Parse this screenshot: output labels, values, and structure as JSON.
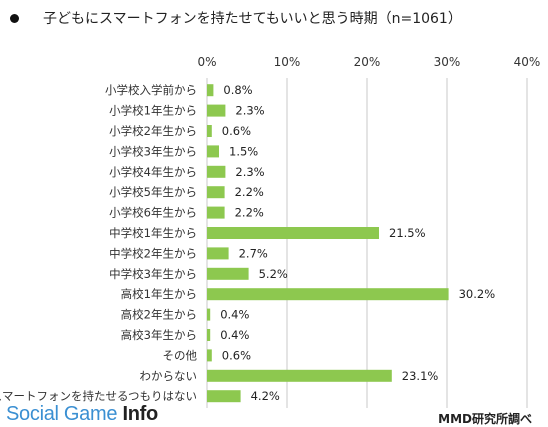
{
  "title": "子どもにスマートフォンを持たせてもいいと思う時期（n=1061）",
  "source": "MMD研究所調べ",
  "watermark": {
    "prefix": "Social Game ",
    "suffix": "Info"
  },
  "colors": {
    "bar": "#8dc84f",
    "grid": "#c8c8c8"
  },
  "chart_data": {
    "type": "bar",
    "orientation": "horizontal",
    "title": "子どもにスマートフォンを持たせてもいいと思う時期（n=1061）",
    "xlim": [
      0,
      40
    ],
    "ticks": [
      "0%",
      "10%",
      "20%",
      "30%",
      "40%"
    ],
    "tick_values": [
      0,
      10,
      20,
      30,
      40
    ],
    "grid": true,
    "categories": [
      "小学校入学前から",
      "小学校1年生から",
      "小学校2年生から",
      "小学校3年生から",
      "小学校4年生から",
      "小学校5年生から",
      "小学校6年生から",
      "中学校1年生から",
      "中学校2年生から",
      "中学校3年生から",
      "高校1年生から",
      "高校2年生から",
      "高校3年生から",
      "その他",
      "わからない",
      "スマートフォンを持たせるつもりはない"
    ],
    "values": [
      0.8,
      2.3,
      0.6,
      1.5,
      2.3,
      2.2,
      2.2,
      21.5,
      2.7,
      5.2,
      30.2,
      0.4,
      0.4,
      0.6,
      23.1,
      4.2
    ],
    "value_labels": [
      "0.8%",
      "2.3%",
      "0.6%",
      "1.5%",
      "2.3%",
      "2.2%",
      "2.2%",
      "21.5%",
      "2.7%",
      "5.2%",
      "30.2%",
      "0.4%",
      "0.4%",
      "0.6%",
      "23.1%",
      "4.2%"
    ]
  }
}
